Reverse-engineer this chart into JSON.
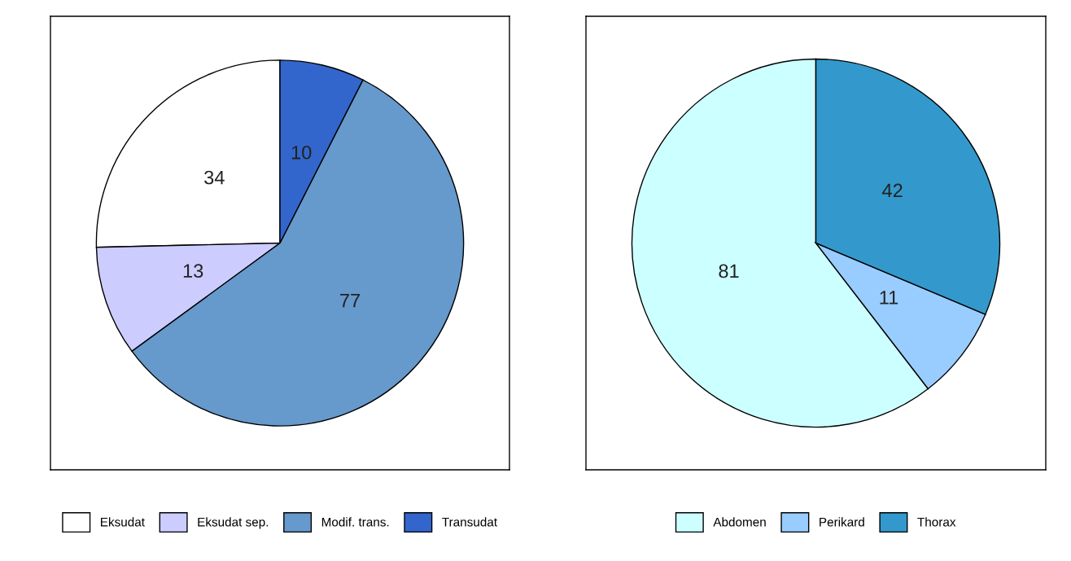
{
  "chart_data": [
    {
      "type": "pie",
      "categories": [
        "Eksudat",
        "Eksudat sep.",
        "Modif. trans.",
        "Transudat"
      ],
      "values": [
        34,
        13,
        77,
        10
      ],
      "colors": [
        "#ffffff",
        "#ccccff",
        "#6699cc",
        "#3366cc"
      ],
      "data_labels": true,
      "legend": "bottom"
    },
    {
      "type": "pie",
      "categories": [
        "Abdomen",
        "Perikard",
        "Thorax"
      ],
      "values": [
        81,
        11,
        42
      ],
      "colors": [
        "#ccffff",
        "#99ccff",
        "#3399cc"
      ],
      "data_labels": true,
      "legend": "bottom"
    }
  ]
}
